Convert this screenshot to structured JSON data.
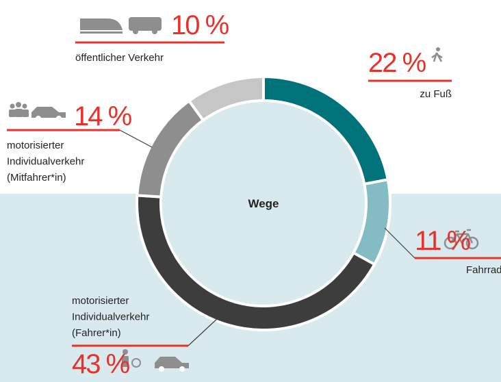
{
  "chart_data": {
    "type": "donut",
    "center_label": "Wege",
    "categories": [
      [
        "zu Fuß"
      ],
      [
        "Fahrrad"
      ],
      [
        "motorisierter",
        "Individualverkehr",
        "(Fahrer*in)"
      ],
      [
        "motorisierter",
        "Individualverkehr",
        "(Mitfahrer*in)"
      ],
      [
        "öffentlicher Verkehr"
      ]
    ],
    "values": [
      22,
      11,
      43,
      14,
      10
    ],
    "value_labels": [
      "22 %",
      "11 %",
      "43 %",
      "14 %",
      "10 %"
    ],
    "colors": [
      "#00737a",
      "#84bcc4",
      "#3d3d3d",
      "#8e8e8e",
      "#c6c6c6"
    ]
  }
}
